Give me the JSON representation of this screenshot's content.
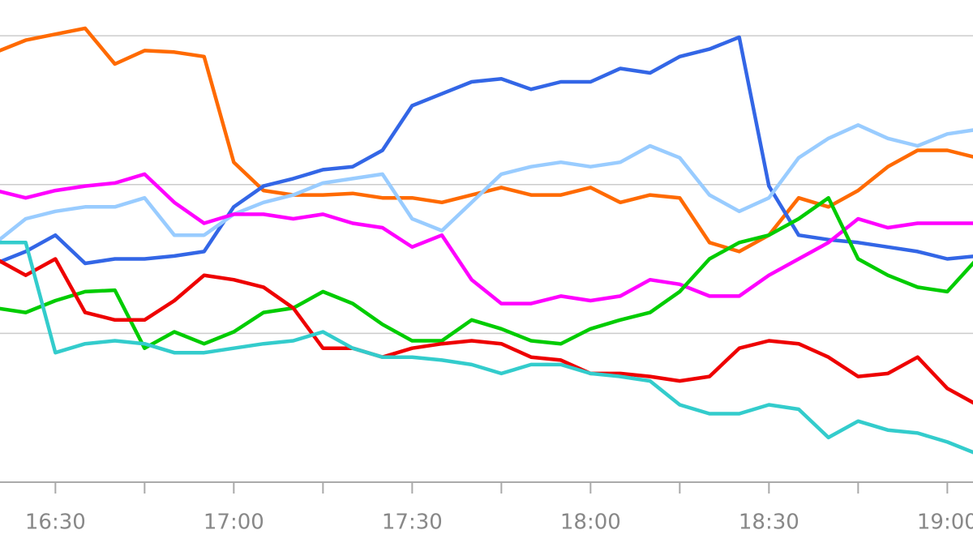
{
  "chart_data": {
    "type": "line",
    "x": [
      "16:20",
      "16:25",
      "16:30",
      "16:35",
      "16:40",
      "16:45",
      "16:50",
      "16:55",
      "17:00",
      "17:05",
      "17:10",
      "17:15",
      "17:20",
      "17:25",
      "17:30",
      "17:35",
      "17:40",
      "17:45",
      "17:50",
      "17:55",
      "18:00",
      "18:05",
      "18:10",
      "18:15",
      "18:20",
      "18:25",
      "18:30",
      "18:35",
      "18:40",
      "18:45",
      "18:50",
      "18:55",
      "19:00",
      "19:05"
    ],
    "xlim": [
      "16:20",
      "19:05"
    ],
    "xticks": [
      "16:30",
      "17:00",
      "17:30",
      "18:00",
      "18:30",
      "19:00"
    ],
    "ylim": [
      0,
      3.24
    ],
    "yticks": [
      1,
      2,
      3
    ],
    "grid": true,
    "series": [
      {
        "color": "#ff6a00",
        "values": [
          2.89,
          2.97,
          3.01,
          3.05,
          2.81,
          2.9,
          2.89,
          2.86,
          2.15,
          1.96,
          1.93,
          1.93,
          1.94,
          1.91,
          1.91,
          1.88,
          1.93,
          1.98,
          1.93,
          1.93,
          1.98,
          1.88,
          1.93,
          1.91,
          1.61,
          1.55,
          1.66,
          1.91,
          1.85,
          1.96,
          2.12,
          2.23,
          2.23,
          2.18
        ]
      },
      {
        "color": "#3366e6",
        "values": [
          1.47,
          1.55,
          1.66,
          1.47,
          1.5,
          1.5,
          1.52,
          1.55,
          1.85,
          1.99,
          2.04,
          2.1,
          2.12,
          2.23,
          2.53,
          2.61,
          2.69,
          2.71,
          2.64,
          2.69,
          2.69,
          2.78,
          2.75,
          2.86,
          2.91,
          2.99,
          1.99,
          1.66,
          1.63,
          1.61,
          1.58,
          1.55,
          1.5,
          1.52
        ]
      },
      {
        "color": "#99ccff",
        "values": [
          1.61,
          1.77,
          1.82,
          1.85,
          1.85,
          1.91,
          1.66,
          1.66,
          1.8,
          1.88,
          1.93,
          2.01,
          2.04,
          2.07,
          1.77,
          1.69,
          1.88,
          2.07,
          2.12,
          2.15,
          2.12,
          2.15,
          2.26,
          2.18,
          1.93,
          1.82,
          1.91,
          2.18,
          2.31,
          2.4,
          2.31,
          2.26,
          2.34,
          2.37
        ]
      },
      {
        "color": "#ff00ff",
        "values": [
          1.96,
          1.91,
          1.96,
          1.99,
          2.01,
          2.07,
          1.88,
          1.74,
          1.8,
          1.8,
          1.77,
          1.8,
          1.74,
          1.71,
          1.58,
          1.66,
          1.36,
          1.2,
          1.2,
          1.25,
          1.22,
          1.25,
          1.36,
          1.33,
          1.25,
          1.25,
          1.39,
          1.5,
          1.61,
          1.77,
          1.71,
          1.74,
          1.74,
          1.74
        ]
      },
      {
        "color": "#00cc00",
        "values": [
          1.17,
          1.14,
          1.22,
          1.28,
          1.29,
          0.9,
          1.01,
          0.93,
          1.01,
          1.14,
          1.17,
          1.28,
          1.2,
          1.06,
          0.95,
          0.95,
          1.09,
          1.03,
          0.95,
          0.93,
          1.03,
          1.09,
          1.14,
          1.28,
          1.5,
          1.61,
          1.66,
          1.77,
          1.91,
          1.5,
          1.39,
          1.31,
          1.28,
          1.5
        ]
      },
      {
        "color": "#ee0000",
        "values": [
          1.5,
          1.39,
          1.5,
          1.14,
          1.09,
          1.09,
          1.22,
          1.39,
          1.36,
          1.31,
          1.17,
          0.9,
          0.9,
          0.84,
          0.9,
          0.93,
          0.95,
          0.93,
          0.84,
          0.82,
          0.73,
          0.73,
          0.71,
          0.68,
          0.71,
          0.9,
          0.95,
          0.93,
          0.84,
          0.71,
          0.73,
          0.84,
          0.63,
          0.52
        ]
      },
      {
        "color": "#33cccc",
        "values": [
          1.61,
          1.61,
          0.87,
          0.93,
          0.95,
          0.93,
          0.87,
          0.87,
          0.9,
          0.93,
          0.95,
          1.01,
          0.9,
          0.84,
          0.84,
          0.82,
          0.79,
          0.73,
          0.79,
          0.79,
          0.73,
          0.71,
          0.68,
          0.52,
          0.46,
          0.46,
          0.52,
          0.49,
          0.3,
          0.41,
          0.35,
          0.33,
          0.27,
          0.19
        ]
      }
    ]
  }
}
